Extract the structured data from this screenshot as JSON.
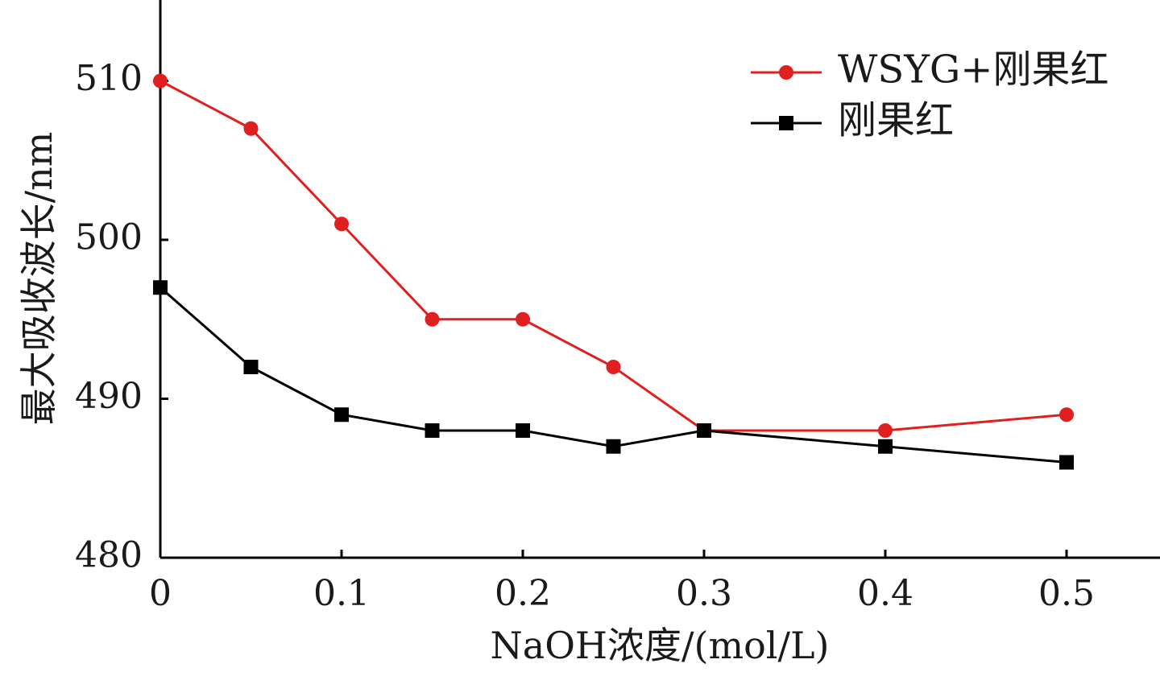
{
  "chart_data": {
    "type": "line",
    "title": "",
    "xlabel": "NaOH浓度/(mol/L)",
    "ylabel": "最大吸收波长/nm",
    "x": [
      0,
      0.05,
      0.1,
      0.15,
      0.2,
      0.25,
      0.3,
      0.4,
      0.5
    ],
    "x_ticks": [
      0,
      0.1,
      0.2,
      0.3,
      0.4,
      0.5
    ],
    "x_tick_labels": [
      "0",
      "0.1",
      "0.2",
      "0.3",
      "0.4",
      "0.5"
    ],
    "y_ticks": [
      480,
      490,
      500,
      510
    ],
    "y_tick_labels": [
      "480",
      "490",
      "500",
      "510"
    ],
    "xlim": [
      0,
      0.55
    ],
    "ylim": [
      480,
      515
    ],
    "grid": false,
    "legend_position": "top-right",
    "series": [
      {
        "name": "WSYG+刚果红",
        "color": "#e02020",
        "marker": "circle",
        "values": [
          510,
          507,
          501,
          495,
          495,
          492,
          488,
          488,
          489
        ]
      },
      {
        "name": "刚果红",
        "color": "#000000",
        "marker": "square",
        "values": [
          497,
          492,
          489,
          488,
          488,
          487,
          488,
          487,
          486
        ]
      }
    ]
  }
}
